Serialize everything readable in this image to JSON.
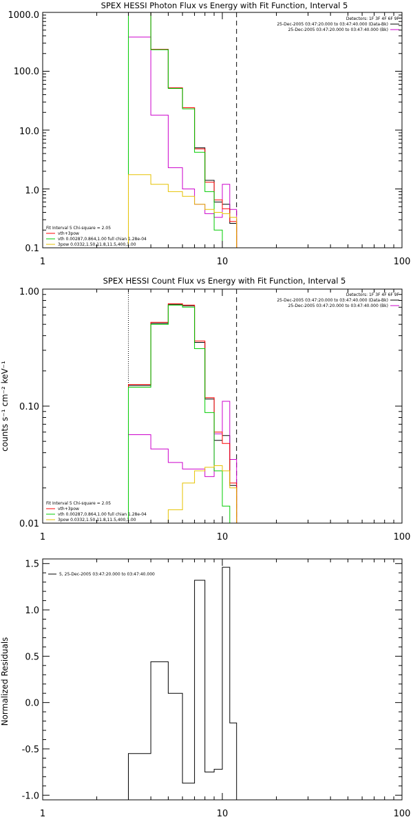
{
  "panels": [
    {
      "title": "SPEX HESSI Photon Flux vs Energy with Fit Function, Interval 5",
      "ylabel": "",
      "xlog": true,
      "ylog": true,
      "xlim": [
        1,
        100
      ],
      "ylim": [
        0.1,
        1000
      ],
      "x_tick_labels": [
        "1",
        "10",
        "100"
      ],
      "y_tick_labels": [
        "0.1",
        "1.0",
        "10.0",
        "100.0",
        "1000.0"
      ],
      "detectors_label": "Detectors: 1F 3F 4F 6F 9F",
      "data_legend": [
        {
          "text": "25-Dec-2005 03:47:20.000 to 03:47:40.000 (Data-Bk)",
          "color": "#000000"
        },
        {
          "text": "25-Dec-2005 03:47:20.000 to 03:47:40.000 (Bk)",
          "color": "#cc00cc"
        }
      ],
      "fit_legend_header": "Fit Interval 5   Chi-square = 2.05",
      "fit_legend": [
        {
          "text": "vth+3pow",
          "color": "#ff0000"
        },
        {
          "text": "vth 0.00287,0.864,1.00   full chian 1.28e-04",
          "color": "#00cc00"
        },
        {
          "text": "3pow 0.0332,1.50,11.8,11.5,400,1.00",
          "color": "#e6c200"
        }
      ]
    },
    {
      "title": "SPEX HESSI Count Flux vs Energy with Fit Function, Interval 5",
      "ylabel": "counts s⁻¹ cm⁻² keV⁻¹",
      "xlog": true,
      "ylog": true,
      "xlim": [
        1,
        100
      ],
      "ylim": [
        0.01,
        1.0
      ],
      "x_tick_labels": [
        "1",
        "10",
        "100"
      ],
      "y_tick_labels": [
        "0.01",
        "0.10",
        "1.00"
      ],
      "detectors_label": "Detectors: 1F 3F 4F 6F 9F",
      "data_legend": [
        {
          "text": "25-Dec-2005 03:47:20.000 to 03:47:40.000 (Data-Bk)",
          "color": "#000000"
        },
        {
          "text": "25-Dec-2005 03:47:20.000 to 03:47:40.000 (Bk)",
          "color": "#cc00cc"
        }
      ],
      "fit_legend_header": "Fit Interval 5   Chi-square = 2.05",
      "fit_legend": [
        {
          "text": "vth+3pow",
          "color": "#ff0000"
        },
        {
          "text": "vth 0.00287,0.864,1.00   full chian 1.28e-04",
          "color": "#00cc00"
        },
        {
          "text": "3pow 0.0332,1.50,11.8,11.5,400,1.00",
          "color": "#e6c200"
        }
      ]
    },
    {
      "title": "",
      "ylabel": "Normalized Residuals",
      "xlog": true,
      "ylog": false,
      "xlim": [
        1,
        100
      ],
      "ylim": [
        -1.05,
        1.55
      ],
      "x_tick_labels": [
        "1",
        "10",
        "100"
      ],
      "y_tick_labels": [
        "-1.0",
        "-0.5",
        "0.0",
        "0.5",
        "1.0",
        "1.5"
      ],
      "legend": "5, 25-Dec-2005 03:47:20.000 to 03:47:40.000"
    }
  ],
  "chart_data": [
    {
      "type": "line",
      "step": true,
      "title": "SPEX HESSI Photon Flux vs Energy with Fit Function, Interval 5",
      "xscale": "log",
      "yscale": "log",
      "xlim": [
        1,
        100
      ],
      "ylim": [
        0.1,
        1000
      ],
      "bin_edges": [
        3.0,
        4.0,
        5.0,
        6.0,
        7.0,
        8.0,
        9.0,
        10.0,
        11.0,
        12.0
      ],
      "fit_range": [
        3.0,
        12.0
      ],
      "series": [
        {
          "name": "Data-Bk",
          "color": "#000000",
          "values": [
            1050,
            235,
            52,
            24,
            5.0,
            1.4,
            0.6,
            0.55,
            0.26
          ]
        },
        {
          "name": "Bk",
          "color": "#cc00cc",
          "values": [
            380,
            18,
            2.3,
            1.0,
            0.55,
            0.38,
            0.33,
            1.2,
            0.45
          ]
        },
        {
          "name": "vth+3pow",
          "color": "#ff0000",
          "values": [
            1050,
            235,
            52,
            24,
            4.8,
            1.3,
            0.65,
            0.46,
            0.28
          ]
        },
        {
          "name": "vth",
          "color": "#00cc00",
          "values": [
            1050,
            232,
            51,
            23,
            4.2,
            0.9,
            0.2,
            0.09,
            0.09
          ]
        },
        {
          "name": "3pow",
          "color": "#e6c200",
          "values": [
            1.75,
            1.2,
            0.9,
            0.75,
            0.55,
            0.45,
            0.4,
            0.38,
            0.33
          ]
        }
      ]
    },
    {
      "type": "line",
      "step": true,
      "title": "SPEX HESSI Count Flux vs Energy with Fit Function, Interval 5",
      "ylabel": "counts s⁻¹ cm⁻² keV⁻¹",
      "xscale": "log",
      "yscale": "log",
      "xlim": [
        1,
        100
      ],
      "ylim": [
        0.01,
        1.0
      ],
      "bin_edges": [
        3.0,
        4.0,
        5.0,
        6.0,
        7.0,
        8.0,
        9.0,
        10.0,
        11.0,
        12.0
      ],
      "fit_range": [
        3.0,
        12.0
      ],
      "series": [
        {
          "name": "Data-Bk",
          "color": "#000000",
          "values": [
            0.15,
            0.51,
            0.74,
            0.72,
            0.35,
            0.115,
            0.051,
            0.056,
            0.021
          ]
        },
        {
          "name": "Bk",
          "color": "#cc00cc",
          "values": [
            0.057,
            0.043,
            0.033,
            0.029,
            0.029,
            0.025,
            0.058,
            0.11,
            0.035
          ]
        },
        {
          "name": "vth+3pow",
          "color": "#ff0000",
          "values": [
            0.153,
            0.52,
            0.75,
            0.73,
            0.36,
            0.118,
            0.06,
            0.048,
            0.022
          ]
        },
        {
          "name": "vth",
          "color": "#00cc00",
          "values": [
            0.145,
            0.5,
            0.73,
            0.7,
            0.31,
            0.088,
            0.028,
            0.014,
            0.01
          ]
        },
        {
          "name": "3pow",
          "color": "#e6c200",
          "values": [
            0.01,
            0.01,
            0.013,
            0.022,
            0.028,
            0.03,
            0.031,
            0.028,
            0.02
          ]
        }
      ]
    },
    {
      "type": "line",
      "step": true,
      "ylabel": "Normalized Residuals",
      "xscale": "log",
      "yscale": "linear",
      "xlim": [
        1,
        100
      ],
      "ylim": [
        -1.05,
        1.55
      ],
      "bin_edges": [
        3.0,
        4.0,
        5.0,
        6.0,
        7.0,
        8.0,
        9.0,
        10.0,
        11.0,
        12.0
      ],
      "series": [
        {
          "name": "5, 25-Dec-2005 03:47:20.000 to 03:47:40.000",
          "color": "#000000",
          "values": [
            -0.55,
            0.44,
            0.1,
            -0.87,
            1.32,
            -0.75,
            -0.72,
            1.46,
            -0.22
          ]
        }
      ]
    }
  ]
}
